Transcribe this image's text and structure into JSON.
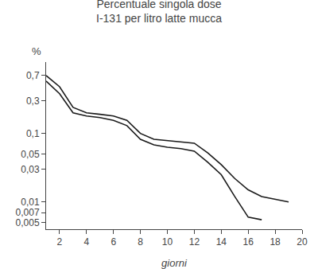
{
  "chart_data": {
    "type": "line",
    "title": "Percentuale singola dose\nI-131 per litro latte mucca",
    "xlabel": "giorni",
    "ylabel": "%",
    "log": "y",
    "grid": false,
    "xlim": [
      1,
      20
    ],
    "xticks": [
      2,
      4,
      6,
      8,
      10,
      12,
      14,
      16,
      18,
      20
    ],
    "ylim": [
      0.004,
      1.1
    ],
    "yticks": [
      {
        "value": 0.005,
        "label": "0,005"
      },
      {
        "value": 0.007,
        "label": "0,007"
      },
      {
        "value": 0.01,
        "label": "0,01"
      },
      {
        "value": 0.03,
        "label": "0,03"
      },
      {
        "value": 0.05,
        "label": "0,05"
      },
      {
        "value": 0.1,
        "label": "0,1"
      },
      {
        "value": 0.3,
        "label": "0,3"
      },
      {
        "value": 0.7,
        "label": "0,7"
      }
    ],
    "series": [
      {
        "color": "#1a1a1a",
        "x": [
          1,
          2,
          3,
          4,
          5,
          6,
          7,
          8,
          9,
          10,
          11,
          12,
          13,
          14,
          15,
          16,
          17,
          18,
          19
        ],
        "values": [
          0.7,
          0.48,
          0.24,
          0.2,
          0.19,
          0.18,
          0.155,
          0.1,
          0.082,
          0.078,
          0.075,
          0.072,
          0.052,
          0.035,
          0.022,
          0.015,
          0.012,
          0.011,
          0.01
        ]
      },
      {
        "color": "#1a1a1a",
        "x": [
          1,
          2,
          3,
          4,
          5,
          6,
          7,
          8,
          9,
          10,
          11,
          12,
          13,
          14,
          15,
          16,
          17
        ],
        "values": [
          0.58,
          0.38,
          0.2,
          0.18,
          0.17,
          0.155,
          0.13,
          0.082,
          0.068,
          0.063,
          0.06,
          0.055,
          0.038,
          0.025,
          0.012,
          0.006,
          0.0055
        ]
      }
    ]
  }
}
